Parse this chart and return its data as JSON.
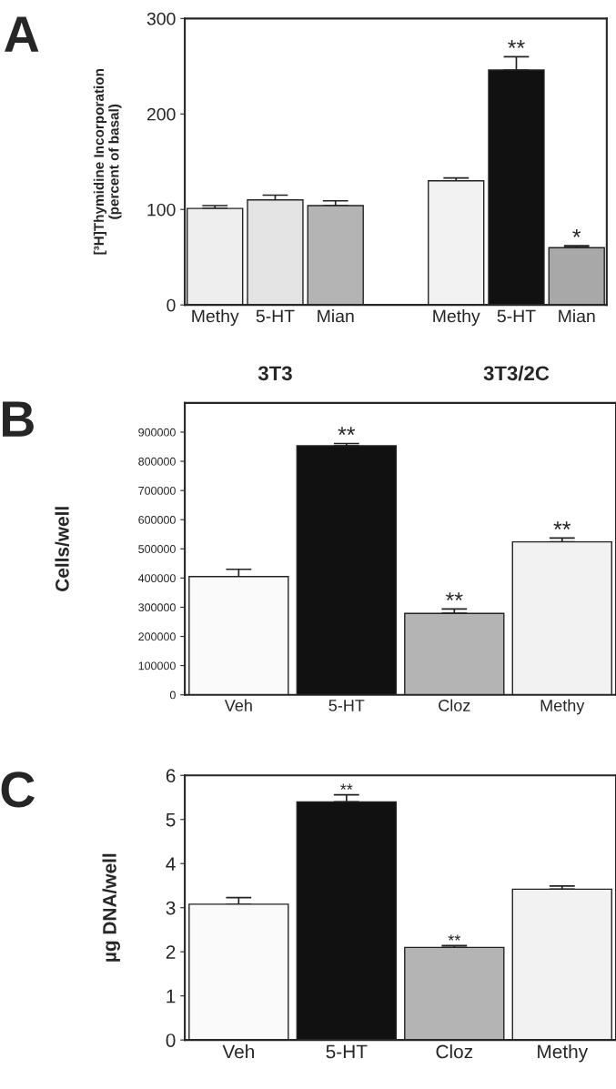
{
  "chart_data": [
    {
      "type": "bar",
      "title": "A",
      "ylabel": "[³H]Thymidine Incorporation\n(percent of basal)",
      "categories": [
        "Methy",
        "5-HT",
        "Mian",
        null,
        "Methy",
        "5-HT",
        "Mian"
      ],
      "values": [
        101,
        110,
        104,
        null,
        130,
        246,
        60
      ],
      "errors": [
        3,
        5,
        5,
        null,
        3,
        14,
        2
      ],
      "value_labels": [
        null,
        null,
        null,
        null,
        null,
        "**",
        "*"
      ],
      "colors": [
        "#eeeeee",
        "#e4e4e4",
        "#b4b4b4",
        "#ffffff",
        "#f2f2f2",
        "#111111",
        "#a8a8a8"
      ],
      "annotations": [
        "3T3",
        "3T3/2C"
      ],
      "ylim": [
        0,
        300
      ],
      "yticks": [
        0,
        100,
        200,
        300
      ],
      "grid": false
    },
    {
      "type": "bar",
      "title": "B",
      "ylabel": "Cells/well",
      "categories": [
        "Veh",
        "5-HT",
        "Cloz",
        "Methy"
      ],
      "values": [
        405000,
        853000,
        279000,
        524000
      ],
      "errors": [
        25000,
        8000,
        15000,
        13000
      ],
      "value_labels": [
        null,
        "**",
        "**",
        "**"
      ],
      "colors": [
        "#fafafa",
        "#111111",
        "#b4b4b4",
        "#f2f2f2"
      ],
      "ylim": [
        0,
        1000000
      ],
      "yticks": [
        0,
        100000,
        200000,
        300000,
        400000,
        500000,
        600000,
        700000,
        800000,
        900000
      ],
      "grid": false
    },
    {
      "type": "bar",
      "title": "C",
      "ylabel": "µg DNA/well",
      "categories": [
        "Veh",
        "5-HT",
        "Cloz",
        "Methy"
      ],
      "values": [
        3.08,
        5.4,
        2.1,
        3.42
      ],
      "errors": [
        0.15,
        0.16,
        0.04,
        0.07
      ],
      "value_labels": [
        null,
        "**",
        "**",
        null
      ],
      "colors": [
        "#fafafa",
        "#111111",
        "#b4b4b4",
        "#f2f2f2"
      ],
      "ylim": [
        0,
        6
      ],
      "yticks": [
        0,
        1,
        2,
        3,
        4,
        5,
        6
      ],
      "grid": false
    }
  ]
}
